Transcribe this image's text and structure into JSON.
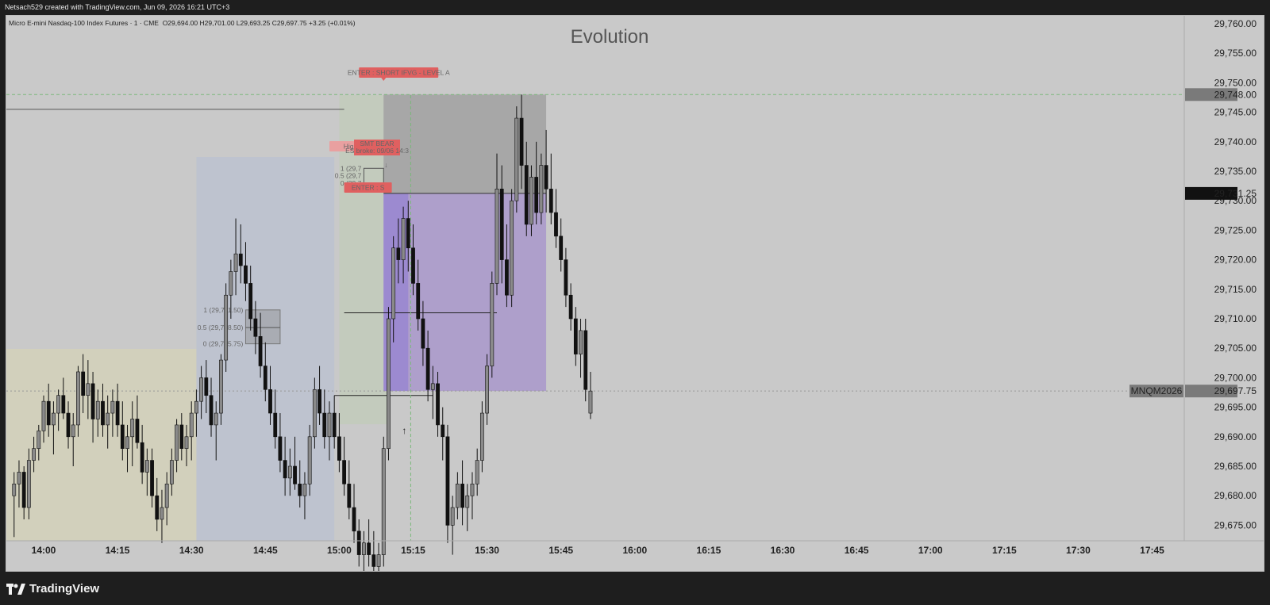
{
  "header": {
    "credit": "Netsach529 created with TradingView.com, Jun 09, 2026 16:21 UTC+3"
  },
  "ticker": {
    "name": "Micro E-mini Nasdaq-100 Index Futures · 1 · CME",
    "ohlc": "O29,694.00  H29,701.00  L29,693.25  C29,697.75  +3.25 (+0.01%)"
  },
  "footer": {
    "logo": "TradingView"
  },
  "chart_data": {
    "type": "candlestick",
    "title": "Evolution",
    "symbol": "MNQM2026",
    "interval": "1",
    "x_ticks": [
      "14:00",
      "14:15",
      "14:30",
      "14:45",
      "15:00",
      "15:15",
      "15:30",
      "15:45",
      "16:00",
      "16:15",
      "16:30",
      "16:45",
      "17:00",
      "17:15",
      "17:30",
      "17:45"
    ],
    "y_ticks": [
      "29,760.00",
      "29,755.00",
      "29,750.00",
      "29,745.00",
      "29,740.00",
      "29,735.00",
      "29,730.00",
      "29,725.00",
      "29,720.00",
      "29,715.00",
      "29,710.00",
      "29,705.00",
      "29,700.00",
      "29,695.00",
      "29,690.00",
      "29,685.00",
      "29,680.00",
      "29,675.00"
    ],
    "ylim": [
      29672,
      29762
    ],
    "price_labels": {
      "last_price": "29,697.75",
      "symbol_label": "MNQM2026",
      "entry_price": "29,731.25",
      "high_price": "29,748.00"
    },
    "annotations": {
      "enter_level_a": "ENTER : SHORT IFVG - LEVEL A",
      "smt_bear_1": "SMT BEAR",
      "smt_bear_2": "ES broke: 09/06 14:3",
      "high_label": "High L",
      "enter_second": "ENTER : S"
    },
    "fib_left": [
      "1 (29,711.50)",
      "0.5 (29,708.50)",
      "0 (29,705.75)"
    ],
    "fib_right": [
      "1 (29,7",
      "0.5 (29,7",
      "0 (29,7"
    ],
    "candles_start_minute": 0,
    "candles": [
      [
        29680,
        29684,
        29673,
        29682
      ],
      [
        29682,
        29686,
        29678,
        29684
      ],
      [
        29684,
        29685,
        29676,
        29678
      ],
      [
        29678,
        29688,
        29676,
        29686
      ],
      [
        29686,
        29690,
        29684,
        29688
      ],
      [
        29688,
        29692,
        29686,
        29691
      ],
      [
        29691,
        29697,
        29689,
        29696
      ],
      [
        29696,
        29699,
        29690,
        29692
      ],
      [
        29692,
        29696,
        29687,
        29694
      ],
      [
        29694,
        29698,
        29691,
        29697
      ],
      [
        29697,
        29700,
        29693,
        29694
      ],
      [
        29694,
        29696,
        29688,
        29690
      ],
      [
        29690,
        29694,
        29685,
        29692
      ],
      [
        29692,
        29702,
        29690,
        29701
      ],
      [
        29701,
        29704,
        29694,
        29697
      ],
      [
        29697,
        29703,
        29693,
        29699
      ],
      [
        29699,
        29701,
        29689,
        29693
      ],
      [
        29693,
        29698,
        29690,
        29696
      ],
      [
        29696,
        29699,
        29690,
        29692
      ],
      [
        29692,
        29697,
        29688,
        29694
      ],
      [
        29694,
        29698,
        29690,
        29696
      ],
      [
        29696,
        29699,
        29690,
        29692
      ],
      [
        29692,
        29696,
        29686,
        29688
      ],
      [
        29688,
        29692,
        29684,
        29690
      ],
      [
        29690,
        29696,
        29685,
        29693
      ],
      [
        29693,
        29697,
        29688,
        29689
      ],
      [
        29689,
        29692,
        29682,
        29684
      ],
      [
        29684,
        29688,
        29680,
        29686
      ],
      [
        29686,
        29688,
        29678,
        29680
      ],
      [
        29680,
        29683,
        29674,
        29676
      ],
      [
        29676,
        29681,
        29672,
        29678
      ],
      [
        29678,
        29684,
        29675,
        29682
      ],
      [
        29682,
        29688,
        29680,
        29686
      ],
      [
        29686,
        29693,
        29684,
        29692
      ],
      [
        29692,
        29694,
        29686,
        29688
      ],
      [
        29688,
        29692,
        29685,
        29690
      ],
      [
        29690,
        29696,
        29686,
        29694
      ],
      [
        29694,
        29698,
        29690,
        29696
      ],
      [
        29696,
        29702,
        29693,
        29700
      ],
      [
        29700,
        29703,
        29694,
        29697
      ],
      [
        29697,
        29700,
        29690,
        29692
      ],
      [
        29692,
        29696,
        29686,
        29694
      ],
      [
        29694,
        29704,
        29692,
        29703
      ],
      [
        29703,
        29716,
        29701,
        29714
      ],
      [
        29714,
        29720,
        29710,
        29718
      ],
      [
        29718,
        29727,
        29714,
        29721
      ],
      [
        29721,
        29726,
        29716,
        29719
      ],
      [
        29719,
        29723,
        29713,
        29716
      ],
      [
        29716,
        29719,
        29708,
        29710
      ],
      [
        29710,
        29713,
        29704,
        29707
      ],
      [
        29707,
        29711,
        29700,
        29702
      ],
      [
        29702,
        29706,
        29696,
        29698
      ],
      [
        29698,
        29702,
        29692,
        29694
      ],
      [
        29694,
        29698,
        29688,
        29690
      ],
      [
        29690,
        29694,
        29684,
        29686
      ],
      [
        29686,
        29690,
        29680,
        29683
      ],
      [
        29683,
        29688,
        29680,
        29685
      ],
      [
        29685,
        29690,
        29681,
        29682
      ],
      [
        29682,
        29686,
        29678,
        29680
      ],
      [
        29680,
        29684,
        29676,
        29682
      ],
      [
        29682,
        29692,
        29680,
        29690
      ],
      [
        29690,
        29700,
        29688,
        29698
      ],
      [
        29698,
        29702,
        29692,
        29694
      ],
      [
        29694,
        29698,
        29688,
        29690
      ],
      [
        29690,
        29696,
        29686,
        29694
      ],
      [
        29694,
        29697,
        29688,
        29690
      ],
      [
        29690,
        29694,
        29684,
        29686
      ],
      [
        29686,
        29690,
        29680,
        29682
      ],
      [
        29682,
        29686,
        29676,
        29678
      ],
      [
        29678,
        29682,
        29672,
        29674
      ],
      [
        29674,
        29676,
        29668,
        29670
      ],
      [
        29670,
        29674,
        29666,
        29672
      ],
      [
        29672,
        29676,
        29668,
        29670
      ],
      [
        29670,
        29674,
        29665,
        29668
      ],
      [
        29668,
        29672,
        29664,
        29670
      ],
      [
        29670,
        29690,
        29668,
        29688
      ],
      [
        29688,
        29712,
        29686,
        29710
      ],
      [
        29710,
        29724,
        29706,
        29722
      ],
      [
        29722,
        29727,
        29716,
        29720
      ],
      [
        29720,
        29729,
        29716,
        29727
      ],
      [
        29727,
        29730,
        29718,
        29722
      ],
      [
        29722,
        29726,
        29714,
        29716
      ],
      [
        29716,
        29720,
        29708,
        29710
      ],
      [
        29710,
        29713,
        29702,
        29705
      ],
      [
        29705,
        29708,
        29696,
        29698
      ],
      [
        29698,
        29702,
        29693,
        29699
      ],
      [
        29699,
        29701,
        29690,
        29692
      ],
      [
        29692,
        29695,
        29686,
        29690
      ],
      [
        29690,
        29692,
        29672,
        29675
      ],
      [
        29675,
        29680,
        29670,
        29678
      ],
      [
        29678,
        29684,
        29676,
        29682
      ],
      [
        29682,
        29686,
        29675,
        29678
      ],
      [
        29678,
        29682,
        29674,
        29680
      ],
      [
        29680,
        29684,
        29676,
        29682
      ],
      [
        29682,
        29688,
        29680,
        29686
      ],
      [
        29686,
        29696,
        29684,
        29694
      ],
      [
        29694,
        29704,
        29692,
        29702
      ],
      [
        29702,
        29718,
        29700,
        29716
      ],
      [
        29716,
        29738,
        29714,
        29732
      ],
      [
        29732,
        29736,
        29716,
        29720
      ],
      [
        29720,
        29726,
        29712,
        29714
      ],
      [
        29714,
        29732,
        29712,
        29730
      ],
      [
        29730,
        29746,
        29728,
        29744
      ],
      [
        29744,
        29748,
        29732,
        29736
      ],
      [
        29736,
        29740,
        29724,
        29726
      ],
      [
        29726,
        29736,
        29724,
        29734
      ],
      [
        29734,
        29740,
        29726,
        29728
      ],
      [
        29728,
        29738,
        29726,
        29736
      ],
      [
        29736,
        29742,
        29728,
        29732
      ],
      [
        29732,
        29738,
        29726,
        29728
      ],
      [
        29728,
        29732,
        29722,
        29724
      ],
      [
        29724,
        29727,
        29718,
        29720
      ],
      [
        29720,
        29722,
        29712,
        29714
      ],
      [
        29714,
        29716,
        29708,
        29710
      ],
      [
        29710,
        29712,
        29702,
        29704
      ],
      [
        29704,
        29710,
        29700,
        29708
      ],
      [
        29708,
        29710,
        29696,
        29698
      ],
      [
        29694,
        29701,
        29693,
        29697.75
      ]
    ]
  }
}
